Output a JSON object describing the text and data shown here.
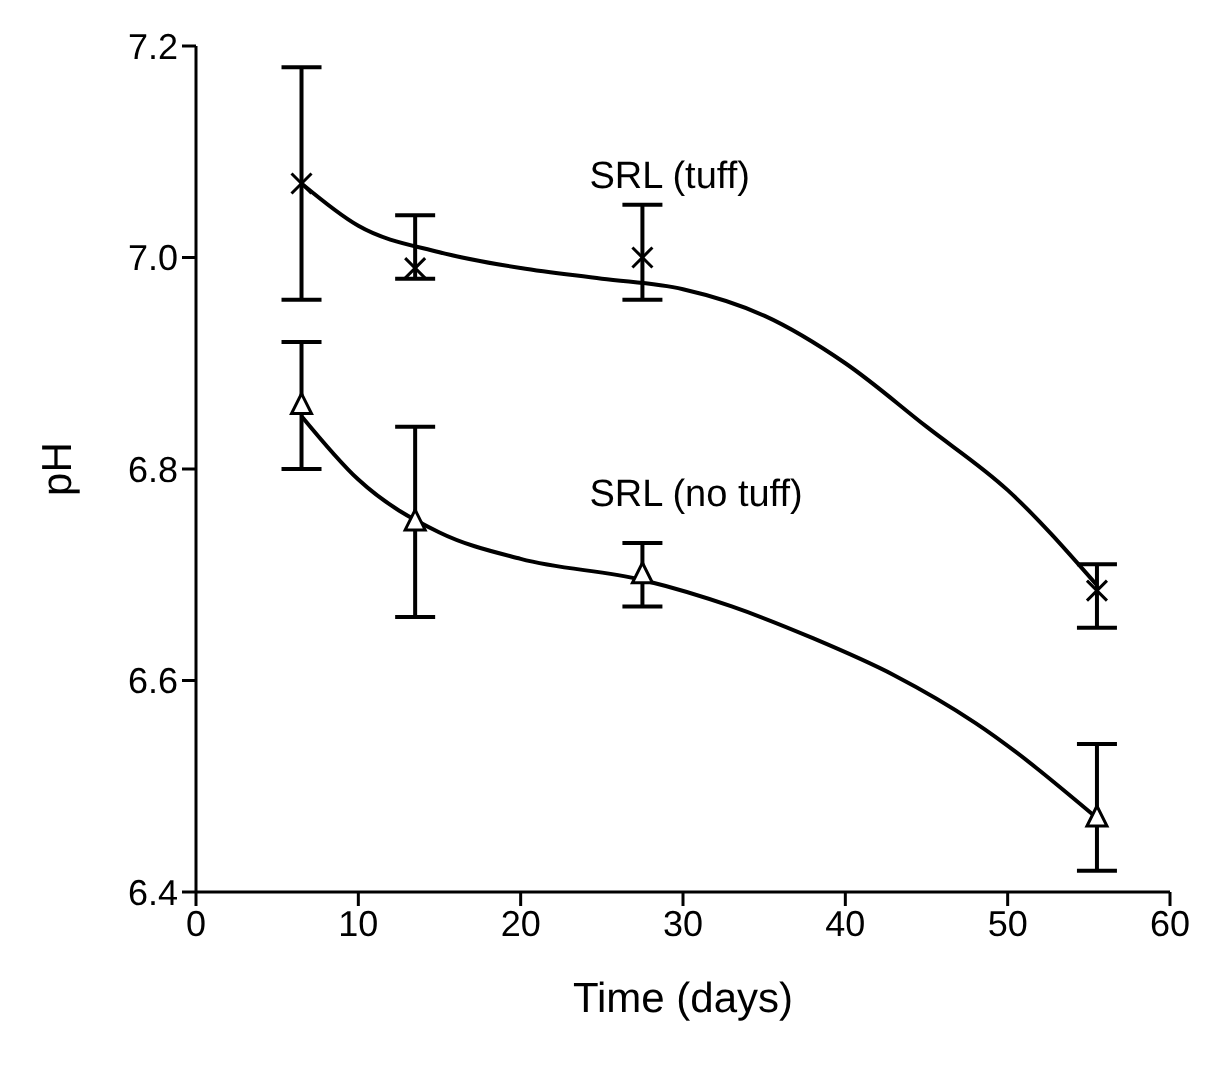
{
  "chart_data": {
    "type": "scatter",
    "xlabel": "Time (days)",
    "ylabel": "pH",
    "xlim": [
      0,
      60
    ],
    "xticks": [
      0,
      10,
      20,
      30,
      40,
      50,
      60
    ],
    "ylim": [
      6.4,
      7.2
    ],
    "yticks": [
      {
        "value": 6.4,
        "label": "6.4"
      },
      {
        "value": 6.6,
        "label": "6.6"
      },
      {
        "value": 6.8,
        "label": "6.8"
      },
      {
        "value": 7.0,
        "label": "7.0"
      },
      {
        "value": 7.2,
        "label": "7.2"
      }
    ],
    "grid": false,
    "legend": false,
    "line_style": "solid",
    "series": [
      {
        "name": "SRL (tuff)",
        "marker": "cross",
        "color": "#000000",
        "x": [
          6.5,
          13.5,
          27.5,
          55.5
        ],
        "values": [
          7.07,
          6.99,
          7.0,
          6.685
        ],
        "errors": [
          [
            6.96,
            7.18
          ],
          [
            6.98,
            7.04
          ],
          [
            6.96,
            7.05
          ],
          [
            6.65,
            6.71
          ]
        ]
      },
      {
        "name": "SRL (no tuff)",
        "marker": "triangle",
        "color": "#000000",
        "x": [
          6.5,
          13.5,
          27.5,
          55.5
        ],
        "values": [
          6.86,
          6.75,
          6.7,
          6.47
        ],
        "errors": [
          [
            6.8,
            6.92
          ],
          [
            6.66,
            6.84
          ],
          [
            6.67,
            6.73
          ],
          [
            6.42,
            6.54
          ]
        ]
      },
      {
        "type": "line",
        "marker": "none",
        "color": "#000000",
        "x": [
          6.5,
          10,
          15,
          20,
          25,
          30,
          35,
          40,
          45,
          50,
          55.5
        ],
        "values": [
          7.07,
          7.03,
          7.005,
          6.99,
          6.98,
          6.97,
          6.945,
          6.9,
          6.84,
          6.78,
          6.69
        ]
      },
      {
        "type": "line",
        "marker": "none",
        "color": "#000000",
        "x": [
          6.5,
          10,
          15,
          20,
          27.5,
          33,
          38,
          43,
          48,
          55.5
        ],
        "values": [
          6.85,
          6.79,
          6.74,
          6.715,
          6.695,
          6.67,
          6.64,
          6.605,
          6.56,
          6.47
        ]
      }
    ]
  }
}
